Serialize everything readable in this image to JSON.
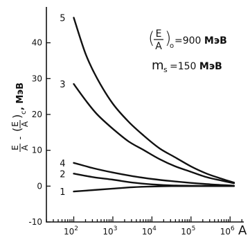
{
  "chart_data": {
    "type": "line",
    "x_scale": "log",
    "xlim_exp": [
      1.3,
      6.35
    ],
    "ylim": [
      -10,
      50
    ],
    "xlabel": "A",
    "ylabel": {
      "top_num": "E",
      "top_den": "A",
      "minus": "-",
      "bot_num": "E",
      "bot_den": "A",
      "bot_sub": "c",
      "unit": ", МэВ"
    },
    "y_ticks": [
      {
        "value": -10,
        "label": "-10"
      },
      {
        "value": 0,
        "label": "0"
      },
      {
        "value": 10,
        "label": "10"
      },
      {
        "value": 20,
        "label": "20"
      },
      {
        "value": 30,
        "label": "30"
      },
      {
        "value": 40,
        "label": "40"
      }
    ],
    "x_ticks": [
      {
        "exp": 2,
        "base": "10",
        "sup": "2"
      },
      {
        "exp": 3,
        "base": "10",
        "sup": "3"
      },
      {
        "exp": 4,
        "base": "10",
        "sup": "4"
      },
      {
        "exp": 5,
        "base": "10",
        "sup": "5"
      },
      {
        "exp": 6,
        "base": "10",
        "sup": "6"
      }
    ],
    "series": [
      {
        "name": "5",
        "x_exp": [
          2.0,
          2.3,
          2.6,
          3.0,
          3.4,
          3.8,
          4.2,
          4.6,
          5.0,
          5.4,
          5.8,
          6.1
        ],
        "y": [
          47,
          37,
          30,
          23,
          18,
          14,
          10.5,
          8,
          5.5,
          3.5,
          2,
          1
        ]
      },
      {
        "name": "3",
        "x_exp": [
          2.0,
          2.3,
          2.6,
          3.0,
          3.4,
          3.8,
          4.2,
          4.6,
          5.0,
          5.4,
          5.8,
          6.1
        ],
        "y": [
          28.5,
          24,
          20,
          16,
          12.5,
          10,
          7.5,
          5.5,
          4,
          2.5,
          1.5,
          0.8
        ]
      },
      {
        "name": "4",
        "x_exp": [
          2.0,
          2.5,
          3.0,
          3.5,
          4.0,
          4.5,
          5.0,
          5.5,
          6.0,
          6.1
        ],
        "y": [
          6.5,
          5,
          3.8,
          2.8,
          2.0,
          1.4,
          0.9,
          0.5,
          0.2,
          0.1
        ]
      },
      {
        "name": "2",
        "x_exp": [
          2.0,
          2.5,
          3.0,
          3.5,
          4.0,
          4.5,
          5.0,
          5.5,
          6.0,
          6.1
        ],
        "y": [
          3.5,
          2.5,
          1.8,
          1.0,
          0.5,
          0.2,
          0.1,
          0.05,
          0.0,
          0.0
        ]
      },
      {
        "name": "1",
        "x_exp": [
          2.0,
          2.5,
          3.0,
          3.5,
          4.0,
          4.5,
          5.0,
          5.5,
          6.0,
          6.1
        ],
        "y": [
          -1.5,
          -1.1,
          -0.7,
          -0.3,
          -0.1,
          0.0,
          0.0,
          0.0,
          0.0,
          0.0
        ]
      }
    ],
    "annotations": {
      "line1": {
        "num": "E",
        "den": "A",
        "sub": "o",
        "eq": "=900 ",
        "unit": "МэВ"
      },
      "line2": {
        "sym": "m",
        "sub": "s",
        "eq": "=150 ",
        "unit": "МэВ"
      }
    }
  }
}
